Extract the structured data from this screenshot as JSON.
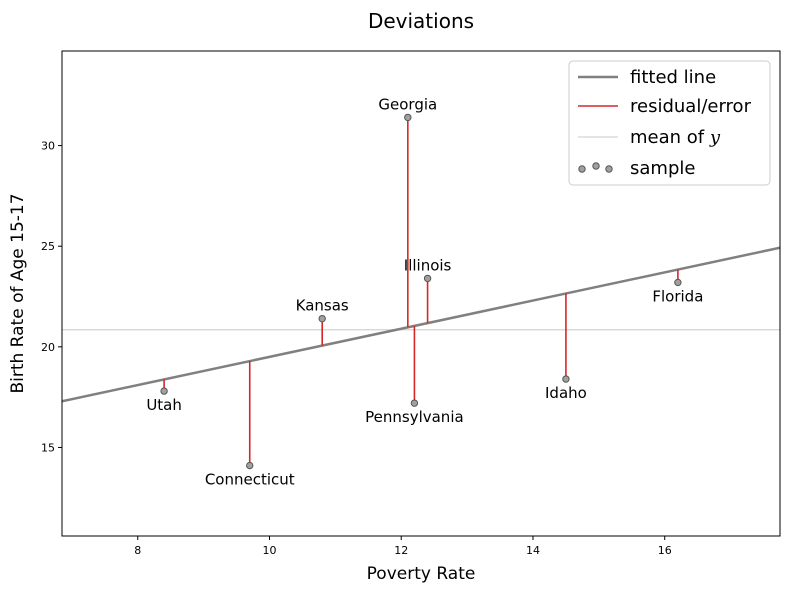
{
  "chart_data": {
    "type": "scatter",
    "title": "Deviations",
    "xlabel": "Poverty Rate",
    "ylabel": "Birth Rate of Age 15-17",
    "xlim": [
      6.85,
      17.75
    ],
    "ylim": [
      10.6,
      34.7
    ],
    "xticks": [
      8,
      10,
      12,
      14,
      16
    ],
    "yticks": [
      15,
      20,
      25,
      30
    ],
    "grid": false,
    "legend_position": "top-right",
    "colors": {
      "fitted_line": "#808080",
      "residual": "#d62728",
      "mean_line": "#d3d3d3",
      "sample_face": "#a0a0a0",
      "sample_edge": "#555555"
    },
    "fitted_line": {
      "slope": 0.7,
      "intercept": 12.5
    },
    "mean_y": 20.85,
    "legend": [
      {
        "key": "fitted",
        "label": "fitted line"
      },
      {
        "key": "residual",
        "label": "residual/error"
      },
      {
        "key": "mean",
        "label": "mean of y"
      },
      {
        "key": "sample",
        "label": "sample"
      }
    ],
    "points": [
      {
        "label": "Utah",
        "x": 8.4,
        "y": 17.8,
        "label_pos": "below"
      },
      {
        "label": "Connecticut",
        "x": 9.7,
        "y": 14.1,
        "label_pos": "below"
      },
      {
        "label": "Kansas",
        "x": 10.8,
        "y": 21.4,
        "label_pos": "above"
      },
      {
        "label": "Georgia",
        "x": 12.1,
        "y": 31.4,
        "label_pos": "above"
      },
      {
        "label": "Pennsylvania",
        "x": 12.2,
        "y": 17.2,
        "label_pos": "below"
      },
      {
        "label": "Illinois",
        "x": 12.4,
        "y": 23.4,
        "label_pos": "above"
      },
      {
        "label": "Idaho",
        "x": 14.5,
        "y": 18.4,
        "label_pos": "below"
      },
      {
        "label": "Florida",
        "x": 16.2,
        "y": 23.2,
        "label_pos": "below"
      }
    ]
  }
}
